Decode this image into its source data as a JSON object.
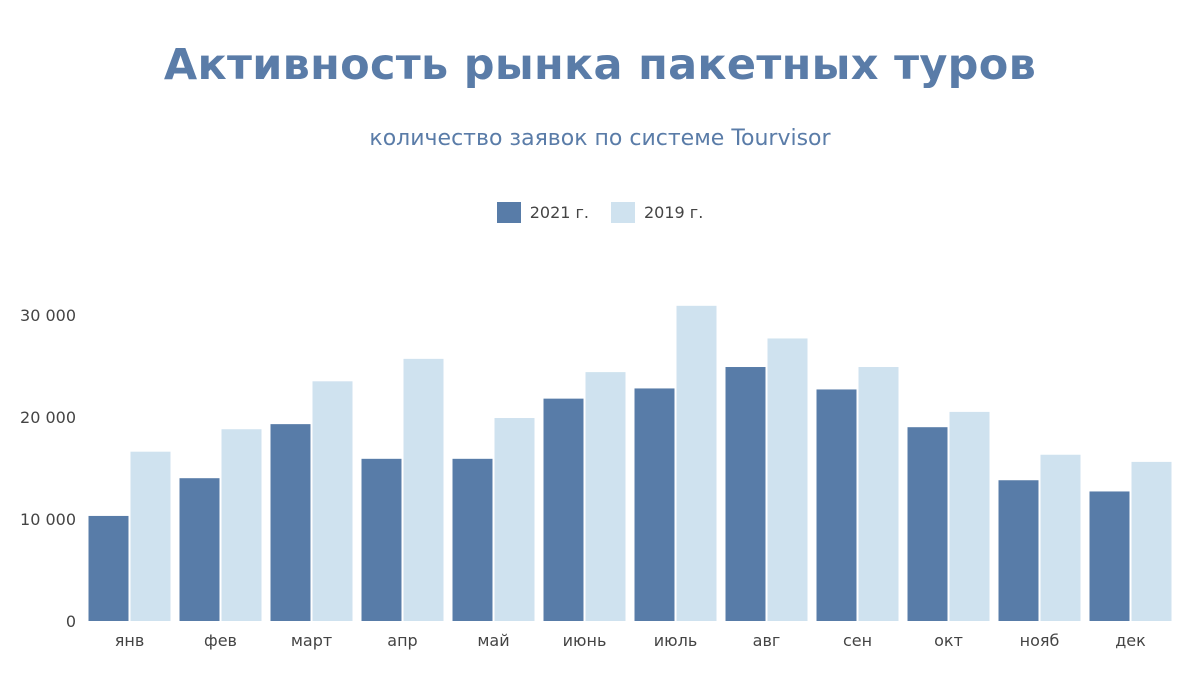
{
  "colors": {
    "series_2021": "#587ca8",
    "series_2019": "#cfe2ef",
    "title": "#5a7ca8"
  },
  "chart_data": {
    "type": "bar",
    "title": "Активность рынка пакетных туров",
    "subtitle": "количество заявок по системе Tourvisor",
    "categories": [
      "янв",
      "фев",
      "март",
      "апр",
      "май",
      "июнь",
      "июль",
      "авг",
      "сен",
      "окт",
      "нояб",
      "дек"
    ],
    "series": [
      {
        "name": "2021 г.",
        "values": [
          10300,
          14000,
          19300,
          15900,
          15900,
          21800,
          22800,
          24900,
          22700,
          19000,
          13800,
          12700
        ]
      },
      {
        "name": "2019 г.",
        "values": [
          16600,
          18800,
          23500,
          25700,
          19900,
          24400,
          30900,
          27700,
          24900,
          20500,
          16300,
          15600
        ]
      }
    ],
    "yticks": [
      0,
      10000,
      20000,
      30000
    ],
    "ytick_labels": [
      "0",
      "10 000",
      "20 000",
      "30 000"
    ],
    "ylim": [
      0,
      30000
    ],
    "xlabel": "",
    "ylabel": "",
    "legend_position": "top-center",
    "grid": false
  }
}
